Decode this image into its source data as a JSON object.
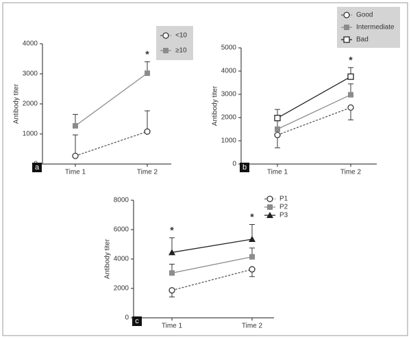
{
  "chart_data": [
    {
      "type": "line",
      "panel": "a",
      "ylabel": "Antibody titer",
      "categories": [
        "Time 1",
        "Time 2"
      ],
      "ylim": [
        0,
        4000
      ],
      "yticks": [
        0,
        1000,
        2000,
        3000,
        4000
      ],
      "legend": "upper right",
      "legend_box": true,
      "series": [
        {
          "name": "<10",
          "color": "#555555",
          "marker": "open-circle",
          "linestyle": "dashed",
          "error_direction": "up",
          "values": [
            270,
            1080
          ],
          "errors": [
            700,
            690
          ]
        },
        {
          "name": "≥10",
          "color": "#8c8c8c",
          "marker": "square",
          "linestyle": "solid",
          "error_direction": "up",
          "values": [
            1270,
            3020
          ],
          "errors": [
            380,
            380
          ]
        }
      ],
      "annotations": [
        {
          "text": "*",
          "category": "Time 2"
        }
      ]
    },
    {
      "type": "line",
      "panel": "b",
      "ylabel": "Antibody titer",
      "categories": [
        "Time 1",
        "Time 2"
      ],
      "ylim": [
        0,
        5000
      ],
      "yticks": [
        0,
        1000,
        2000,
        3000,
        4000,
        5000
      ],
      "legend": "outside upper right",
      "legend_box": true,
      "series": [
        {
          "name": "Good",
          "color": "#555555",
          "marker": "open-circle",
          "linestyle": "dashed",
          "error_direction": "down",
          "values": [
            1250,
            2430
          ],
          "errors": [
            550,
            530
          ]
        },
        {
          "name": "Intermediate",
          "color": "#8c8c8c",
          "marker": "square",
          "linestyle": "solid",
          "error_direction": "up",
          "values": [
            1500,
            2980
          ],
          "errors": [
            380,
            470
          ]
        },
        {
          "name": "Bad",
          "color": "#222222",
          "marker": "open-square",
          "linestyle": "solid",
          "error_direction": "up",
          "values": [
            1980,
            3760
          ],
          "errors": [
            370,
            390
          ]
        }
      ],
      "annotations": [
        {
          "text": "*",
          "category": "Time 2"
        }
      ]
    },
    {
      "type": "line",
      "panel": "c",
      "ylabel": "Antibody titer",
      "categories": [
        "Time 1",
        "Time 2"
      ],
      "ylim": [
        0,
        8000
      ],
      "yticks": [
        0,
        2000,
        4000,
        6000,
        8000
      ],
      "legend": "upper right",
      "legend_box": false,
      "series": [
        {
          "name": "P1",
          "color": "#555555",
          "marker": "open-circle",
          "linestyle": "dashed",
          "error_direction": "down",
          "values": [
            1870,
            3300
          ],
          "errors": [
            450,
            500
          ]
        },
        {
          "name": "P2",
          "color": "#8c8c8c",
          "marker": "square",
          "linestyle": "solid",
          "error_direction": "up",
          "values": [
            3050,
            4150
          ],
          "errors": [
            600,
            600
          ]
        },
        {
          "name": "P3",
          "color": "#222222",
          "marker": "triangle",
          "linestyle": "solid",
          "error_direction": "up",
          "values": [
            4450,
            5350
          ],
          "errors": [
            1000,
            1000
          ]
        }
      ],
      "annotations": [
        {
          "text": "*",
          "category": "Time 1"
        },
        {
          "text": "*",
          "category": "Time 2"
        }
      ]
    }
  ]
}
